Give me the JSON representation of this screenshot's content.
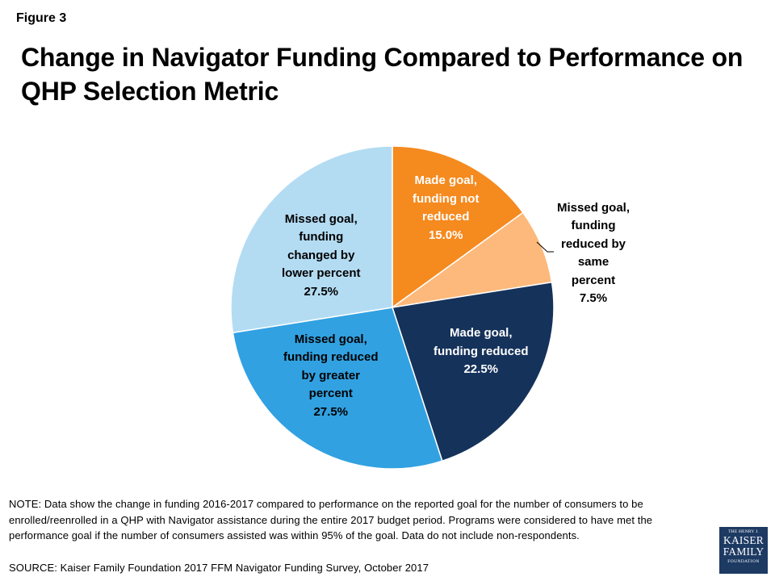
{
  "figure_label": "Figure 3",
  "title": "Change in Navigator Funding Compared to Performance on QHP Selection Metric",
  "note": "NOTE: Data show the change in funding 2016-2017 compared to performance on the reported goal for the number of consumers to be enrolled/reenrolled in a QHP with Navigator assistance during the entire 2017 budget period. Programs were considered to have met the performance goal if the number of consumers assisted was within 95% of the goal. Data do not include non-respondents.",
  "source": "SOURCE: Kaiser Family Foundation 2017 FFM Navigator Funding Survey, October 2017",
  "logo": {
    "line1": "THE HENRY J.",
    "line2": "KAISER",
    "line3": "FAMILY",
    "line4": "FOUNDATION"
  },
  "chart_data": {
    "type": "pie",
    "start": "12 o'clock",
    "direction": "clockwise",
    "slices": [
      {
        "label": "Made goal, funding not reduced",
        "value": 15.0,
        "display": "Made goal,\nfunding not\nreduced\n15.0%",
        "color": "#f58a1f",
        "text_color": "#ffffff"
      },
      {
        "label": "Missed goal, funding reduced by same percent",
        "value": 7.5,
        "display": "Missed goal,\nfunding\nreduced by\nsame\npercent\n7.5%",
        "color": "#fdb97b",
        "text_color": "#000000"
      },
      {
        "label": "Made goal, funding reduced",
        "value": 22.5,
        "display": "Made goal,\nfunding reduced\n22.5%",
        "color": "#15325a",
        "text_color": "#ffffff"
      },
      {
        "label": "Missed goal, funding reduced by greater percent",
        "value": 27.5,
        "display": "Missed goal,\nfunding reduced\nby greater\npercent\n27.5%",
        "color": "#31a1e1",
        "text_color": "#000000"
      },
      {
        "label": "Missed goal, funding changed by lower percent",
        "value": 27.5,
        "display": "Missed goal,\nfunding\nchanged by\nlower percent\n27.5%",
        "color": "#b3dcf3",
        "text_color": "#000000"
      }
    ]
  }
}
